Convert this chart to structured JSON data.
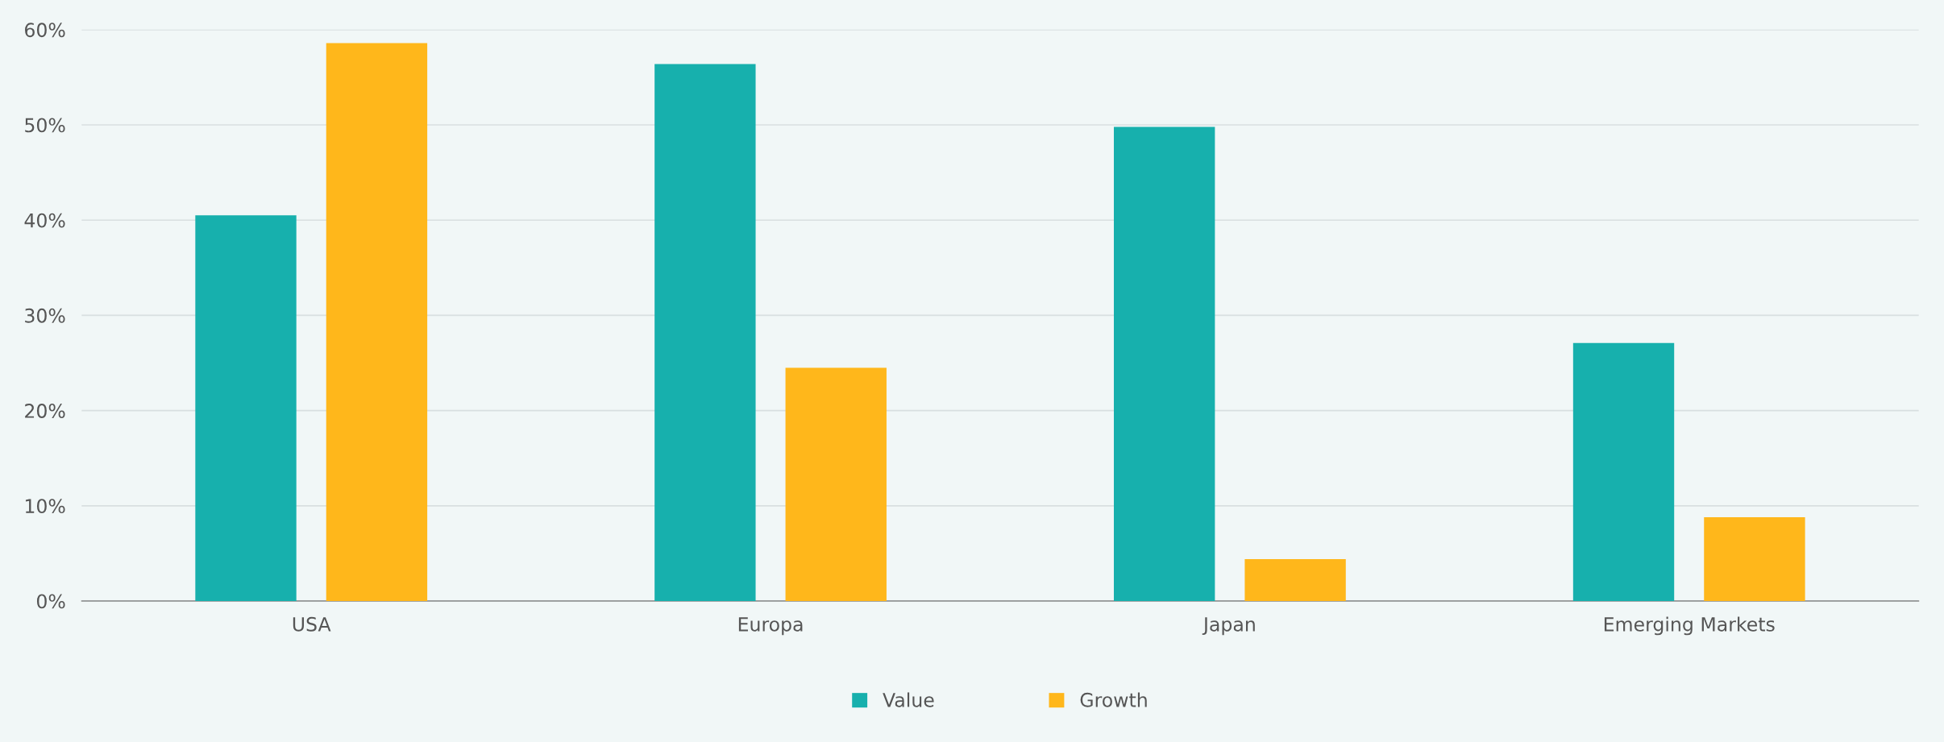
{
  "chart_data": {
    "type": "bar",
    "categories": [
      "USA",
      "Europa",
      "Japan",
      "Emerging Markets"
    ],
    "series": [
      {
        "name": "Value",
        "color": "#17b0ad",
        "values": [
          40.5,
          56.4,
          49.8,
          27.1
        ]
      },
      {
        "name": "Growth",
        "color": "#ffb71b",
        "values": [
          58.6,
          24.5,
          4.4,
          8.8
        ]
      }
    ],
    "ylim": [
      0,
      60
    ],
    "yticks": [
      {
        "value": 0,
        "label": "0%"
      },
      {
        "value": 10,
        "label": "10%"
      },
      {
        "value": 20,
        "label": "20%"
      },
      {
        "value": 30,
        "label": "30%"
      },
      {
        "value": 40,
        "label": "40%"
      },
      {
        "value": 50,
        "label": "50%"
      },
      {
        "value": 60,
        "label": "60%"
      }
    ],
    "grid": "y",
    "legend": "bottom"
  }
}
